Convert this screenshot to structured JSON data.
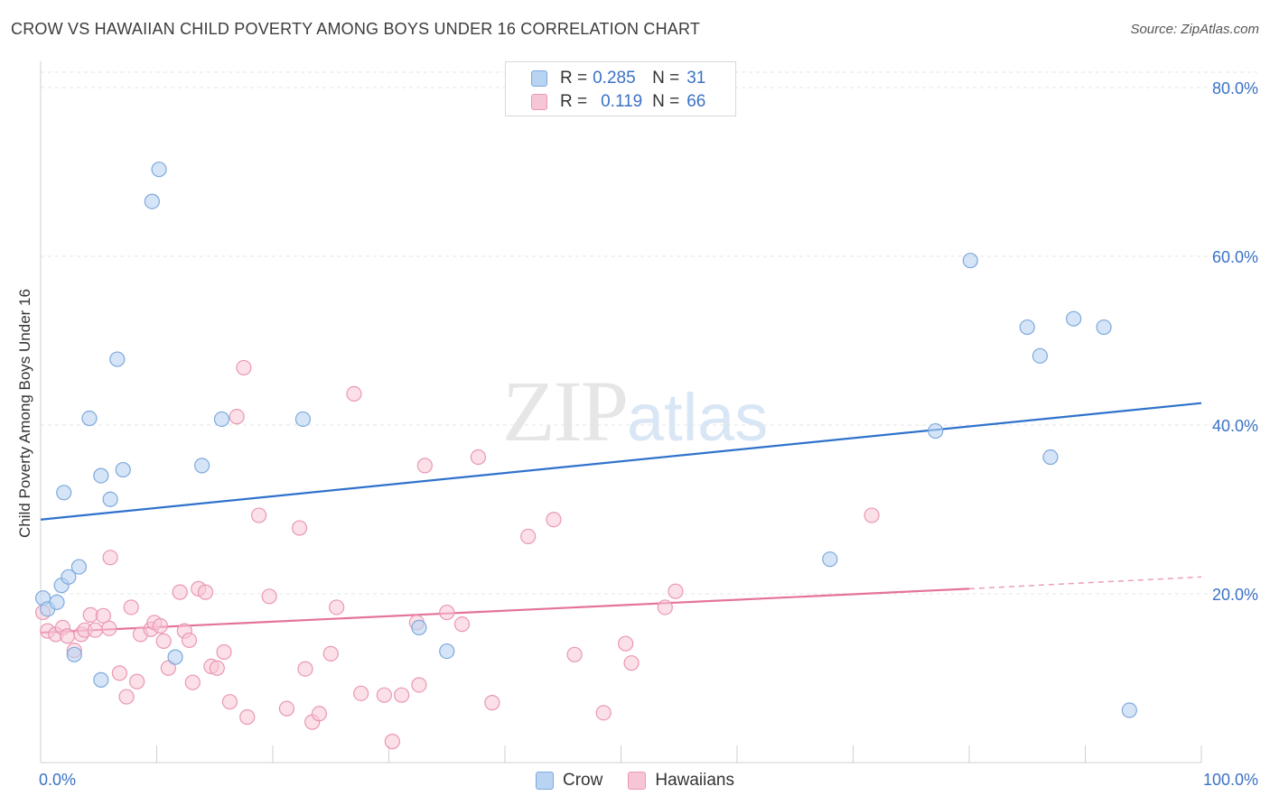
{
  "header": {
    "title": "CROW VS HAWAIIAN CHILD POVERTY AMONG BOYS UNDER 16 CORRELATION CHART",
    "source": "Source: ZipAtlas.com"
  },
  "watermark": {
    "zip": "ZIP",
    "atlas": "atlas"
  },
  "legend": {
    "rows": [
      {
        "r_label": "R =",
        "r_value": "0.285",
        "n_label": "N =",
        "n_value": "31"
      },
      {
        "r_label": "R =",
        "r_value": "0.119",
        "n_label": "N =",
        "n_value": "66"
      }
    ]
  },
  "bottom_legend": {
    "crow": "Crow",
    "hawaiians": "Hawaiians"
  },
  "colors": {
    "crow_fill": "#b9d3f2",
    "crow_stroke": "#7ea9dd",
    "crow_line": "#2f72cc",
    "haw_fill": "#f7c6d6",
    "haw_stroke": "#ea97b3",
    "haw_line": "#e4729c",
    "tick_text": "#3b72c6",
    "grid": "#e4e4e4"
  },
  "chart_data": {
    "type": "scatter",
    "title": "CROW VS HAWAIIAN CHILD POVERTY AMONG BOYS UNDER 16 CORRELATION CHART",
    "xlabel": "",
    "ylabel": "Child Poverty Among Boys Under 16",
    "xlim": [
      0,
      100
    ],
    "ylim": [
      0,
      80
    ],
    "x_tick_labels": [
      "0.0%",
      "100.0%"
    ],
    "y_ticks": [
      20,
      40,
      60,
      80
    ],
    "y_tick_labels": [
      "20.0%",
      "40.0%",
      "60.0%",
      "80.0%"
    ],
    "series": [
      {
        "name": "Crow",
        "points": [
          [
            0.2,
            19.5
          ],
          [
            0.6,
            18.2
          ],
          [
            1.4,
            19.0
          ],
          [
            1.8,
            21.0
          ],
          [
            2.0,
            32.0
          ],
          [
            2.4,
            22.0
          ],
          [
            2.9,
            12.8
          ],
          [
            3.3,
            23.2
          ],
          [
            4.2,
            40.8
          ],
          [
            5.2,
            34.0
          ],
          [
            5.2,
            9.8
          ],
          [
            6.0,
            31.2
          ],
          [
            6.6,
            47.8
          ],
          [
            7.1,
            34.7
          ],
          [
            9.6,
            66.5
          ],
          [
            10.2,
            70.3
          ],
          [
            11.6,
            12.5
          ],
          [
            13.9,
            35.2
          ],
          [
            15.6,
            40.7
          ],
          [
            22.6,
            40.7
          ],
          [
            32.6,
            16.0
          ],
          [
            35.0,
            13.2
          ],
          [
            68.0,
            24.1
          ],
          [
            77.1,
            39.3
          ],
          [
            80.1,
            59.5
          ],
          [
            85.0,
            51.6
          ],
          [
            86.1,
            48.2
          ],
          [
            87.0,
            36.2
          ],
          [
            89.0,
            52.6
          ],
          [
            91.6,
            51.6
          ],
          [
            93.8,
            6.2
          ]
        ],
        "trend": {
          "x": [
            0,
            100
          ],
          "y": [
            28.8,
            42.6
          ]
        }
      },
      {
        "name": "Hawaiians",
        "points": [
          [
            0.2,
            17.8
          ],
          [
            0.6,
            15.6
          ],
          [
            1.3,
            15.2
          ],
          [
            1.9,
            16.0
          ],
          [
            2.3,
            15.0
          ],
          [
            2.9,
            13.3
          ],
          [
            3.5,
            15.2
          ],
          [
            3.8,
            15.7
          ],
          [
            4.3,
            17.5
          ],
          [
            4.7,
            15.7
          ],
          [
            5.4,
            17.4
          ],
          [
            5.9,
            15.9
          ],
          [
            6.0,
            24.3
          ],
          [
            6.8,
            10.6
          ],
          [
            7.4,
            7.8
          ],
          [
            7.8,
            18.4
          ],
          [
            8.3,
            9.6
          ],
          [
            8.6,
            15.2
          ],
          [
            9.5,
            15.8
          ],
          [
            9.8,
            16.6
          ],
          [
            10.3,
            16.2
          ],
          [
            10.6,
            14.4
          ],
          [
            11.0,
            11.2
          ],
          [
            12.0,
            20.2
          ],
          [
            12.4,
            15.6
          ],
          [
            12.8,
            14.5
          ],
          [
            13.1,
            9.5
          ],
          [
            13.6,
            20.6
          ],
          [
            14.2,
            20.2
          ],
          [
            14.7,
            11.4
          ],
          [
            15.2,
            11.2
          ],
          [
            15.8,
            13.1
          ],
          [
            16.3,
            7.2
          ],
          [
            16.9,
            41.0
          ],
          [
            17.5,
            46.8
          ],
          [
            17.8,
            5.4
          ],
          [
            18.8,
            29.3
          ],
          [
            19.7,
            19.7
          ],
          [
            21.2,
            6.4
          ],
          [
            22.3,
            27.8
          ],
          [
            22.8,
            11.1
          ],
          [
            23.4,
            4.8
          ],
          [
            24.0,
            5.8
          ],
          [
            25.0,
            12.9
          ],
          [
            25.5,
            18.4
          ],
          [
            27.0,
            43.7
          ],
          [
            27.6,
            8.2
          ],
          [
            29.6,
            8.0
          ],
          [
            30.3,
            2.5
          ],
          [
            31.1,
            8.0
          ],
          [
            32.4,
            16.6
          ],
          [
            32.6,
            9.2
          ],
          [
            33.1,
            35.2
          ],
          [
            35.0,
            17.8
          ],
          [
            36.3,
            16.4
          ],
          [
            37.7,
            36.2
          ],
          [
            38.9,
            7.1
          ],
          [
            42.0,
            26.8
          ],
          [
            44.2,
            28.8
          ],
          [
            46.0,
            12.8
          ],
          [
            48.5,
            5.9
          ],
          [
            50.4,
            14.1
          ],
          [
            50.9,
            11.8
          ],
          [
            53.8,
            18.4
          ],
          [
            54.7,
            20.3
          ],
          [
            71.6,
            29.3
          ]
        ],
        "trend": {
          "x": [
            0,
            80
          ],
          "y": [
            15.4,
            20.6
          ]
        },
        "trend_dashed": {
          "x": [
            80,
            100
          ],
          "y": [
            20.6,
            22.0
          ]
        }
      }
    ]
  }
}
